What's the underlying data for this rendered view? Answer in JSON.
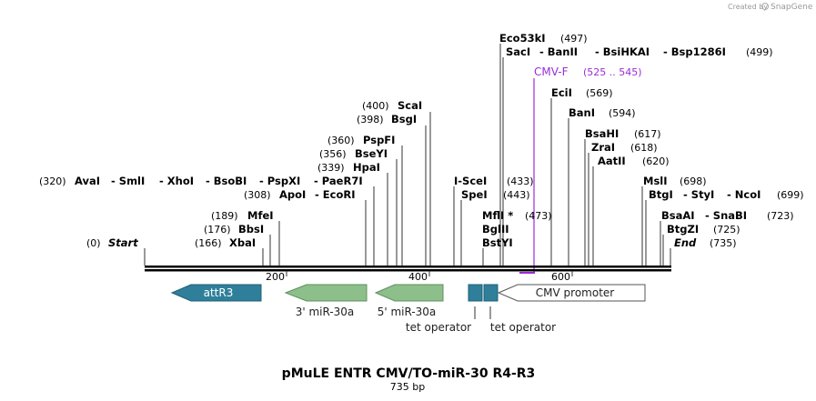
{
  "credit": "Created by",
  "brand": "SnapGene",
  "title": "pMuLE ENTR CMV/TO-miR-30 R4-R3",
  "length_label": "735 bp",
  "ruler_ticks": [
    "200",
    "400",
    "600"
  ],
  "start_label": {
    "pos": "(0)",
    "name": "Start"
  },
  "end_label": {
    "pos": "(735)",
    "name": "End"
  },
  "sites": {
    "mfei": {
      "pos": "(189)",
      "name": "MfeI"
    },
    "bbsi": {
      "pos": "(176)",
      "name": "BbsI"
    },
    "xbai": {
      "pos": "(166)",
      "name": "XbaI"
    },
    "avai_group": {
      "pos": "(320)",
      "names": [
        "AvaI",
        "SmlI",
        "XhoI",
        "BsoBI",
        "PspXI",
        "PaeR7I"
      ]
    },
    "apoi_group": {
      "pos": "(308)",
      "names": [
        "ApoI",
        "EcoRI"
      ]
    },
    "hpai": {
      "pos": "(339)",
      "name": "HpaI"
    },
    "bseyi": {
      "pos": "(356)",
      "name": "BseYI"
    },
    "pspfi": {
      "pos": "(360)",
      "name": "PspFI"
    },
    "bsgi": {
      "pos": "(398)",
      "name": "BsgI"
    },
    "scai": {
      "pos": "(400)",
      "name": "ScaI"
    },
    "iscei": {
      "pos": "(433)",
      "name": "I-SceI"
    },
    "spei": {
      "pos": "(443)",
      "name": "SpeI"
    },
    "mfli": {
      "pos": "(473)",
      "name": "MflI *"
    },
    "bglii": {
      "name": "BglII"
    },
    "bstyi": {
      "name": "BstYI"
    },
    "eco53ki": {
      "pos": "(497)",
      "name": "Eco53kI"
    },
    "saci_group": {
      "pos": "(499)",
      "names": [
        "SacI",
        "BanII",
        "BsiHKAI",
        "Bsp1286I"
      ]
    },
    "cmvf": {
      "pos": "(525 .. 545)",
      "name": "CMV-F"
    },
    "ecii": {
      "pos": "(569)",
      "name": "EciI"
    },
    "bani": {
      "pos": "(594)",
      "name": "BanI"
    },
    "bsahi": {
      "pos": "(617)",
      "name": "BsaHI"
    },
    "zrai": {
      "pos": "(618)",
      "name": "ZraI"
    },
    "aatii": {
      "pos": "(620)",
      "name": "AatII"
    },
    "msli": {
      "pos": "(698)",
      "name": "MslI"
    },
    "btgi_group": {
      "pos": "(699)",
      "names": [
        "BtgI",
        "StyI",
        "NcoI"
      ]
    },
    "bsaai_group": {
      "pos": "(723)",
      "names": [
        "BsaAI",
        "SnaBI"
      ]
    },
    "btgzi": {
      "pos": "(725)",
      "name": "BtgZI"
    }
  },
  "features": {
    "attr3": "attR3",
    "mir3": "3' miR-30a",
    "mir5": "5' miR-30a",
    "tet1": "tet operator",
    "tet2": "tet operator",
    "cmv": "CMV promoter"
  },
  "colors": {
    "attr3": "#2f7f9a",
    "mir": "#8dbf8b",
    "tet": "#2f7f9a",
    "primer": "#9b2cd8",
    "cmv": "#ffffff"
  }
}
